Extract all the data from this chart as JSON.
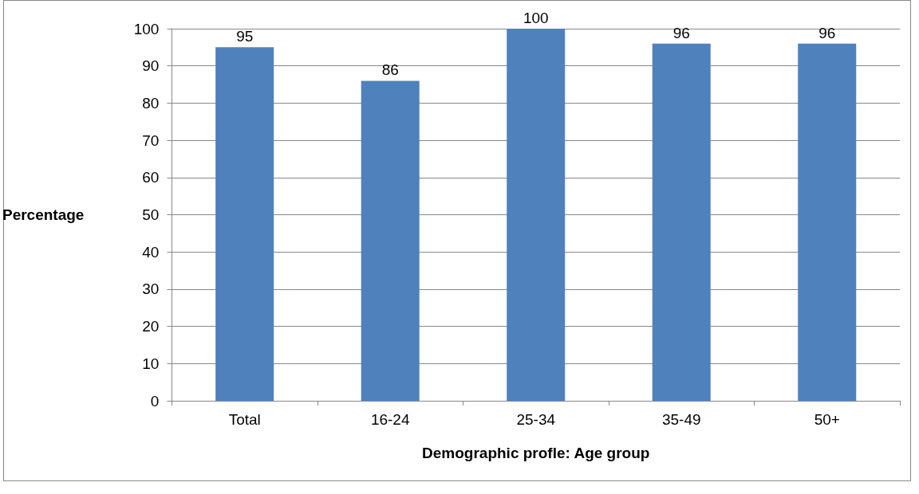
{
  "chart_data": {
    "type": "bar",
    "xlabel": "Demographic profle: Age group",
    "ylabel": "Percentage",
    "categories": [
      "Total",
      "16-24",
      "25-34",
      "35-49",
      "50+"
    ],
    "values": [
      95,
      86,
      100,
      96,
      96
    ],
    "color": "#4f81bd",
    "ylim": [
      0,
      100
    ],
    "yticks": [
      0,
      10,
      20,
      30,
      40,
      50,
      60,
      70,
      80,
      90,
      100
    ],
    "grid": "y",
    "data_labels": true
  }
}
